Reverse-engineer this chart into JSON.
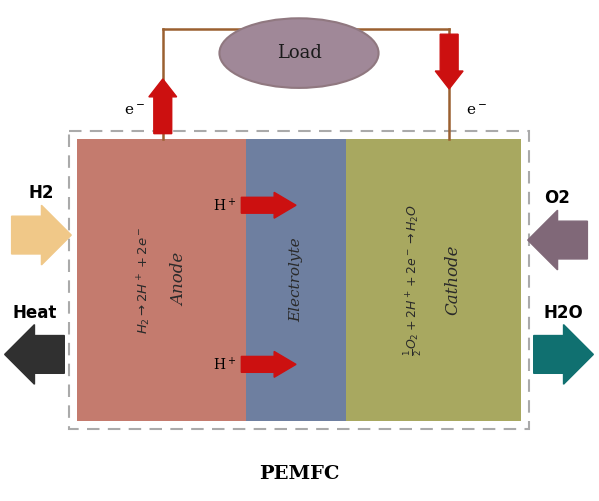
{
  "title": "PEMFC",
  "bg_color": "#ffffff",
  "anode_color": "#c47b6e",
  "electrolyte_color": "#6e7fa0",
  "cathode_color": "#a8a860",
  "load_ellipse_color": "#a08898",
  "load_ellipse_edge": "#907880",
  "circuit_line_color": "#9b6030",
  "arrow_red": "#cc1010",
  "h2_arrow_color": "#f0c888",
  "heat_arrow_color": "#303030",
  "o2_arrow_color": "#806878",
  "h2o_arrow_color": "#107070",
  "text_color_dark": "#2a2a2a",
  "anode_label": "Anode",
  "anode_eq": "$H_2 \\rightarrow 2H^+ + 2e^-$",
  "electrolyte_label": "Electrolyte",
  "cathode_label": "Cathode",
  "cathode_eq": "$\\frac{1}{2}O_2 + 2H^+ + 2e^- \\rightarrow H_2O$",
  "load_label": "Load",
  "e_minus_left": "e$^-$",
  "e_minus_right": "e$^-$",
  "h2_label": "H2",
  "heat_label": "Heat",
  "o2_label": "O2",
  "h2o_label": "H2O",
  "hplus_label": "H$^+$"
}
